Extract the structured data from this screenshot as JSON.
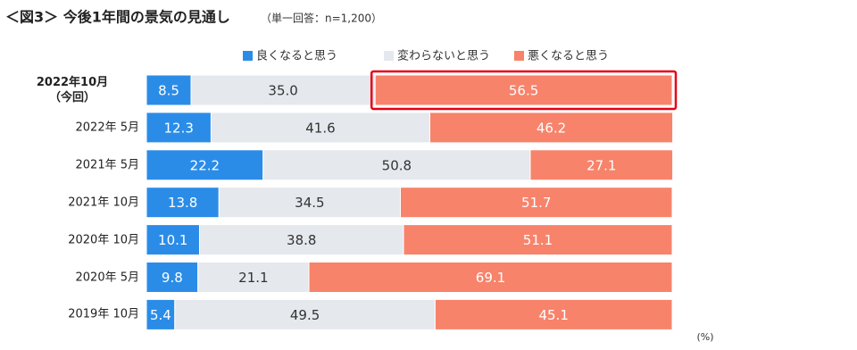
{
  "chart_data": {
    "type": "stacked-bar-horizontal",
    "title": "＜図3＞ 今後1年間の景気の見通し",
    "subtitle": "（単一回答：n=1,200）",
    "unit_label": "(%)",
    "categories": [
      "2022年10月\n（今回）",
      "2022年  5月",
      "2021年  5月",
      "2021年 10月",
      "2020年 10月",
      "2020年  5月",
      "2019年 10月"
    ],
    "series": [
      {
        "name": "良くなると思う",
        "color": "#2b8ce8",
        "values": [
          8.5,
          12.3,
          22.2,
          13.8,
          10.1,
          9.8,
          5.4
        ]
      },
      {
        "name": "変わらないと思う",
        "color": "#e5e8ed",
        "values": [
          35.0,
          41.6,
          50.8,
          34.5,
          38.8,
          21.1,
          49.5
        ],
        "value_labels": [
          "35.0",
          "41.6",
          "50.8",
          "34.5",
          "38.8",
          "21.1",
          "49.5"
        ]
      },
      {
        "name": "悪くなると思う",
        "color": "#f7836b",
        "values": [
          56.5,
          46.2,
          27.1,
          51.7,
          51.1,
          69.1,
          45.1
        ]
      }
    ],
    "xlim": [
      0,
      100
    ],
    "highlight": {
      "category": 0,
      "series": 2,
      "color": "#e60012"
    }
  }
}
